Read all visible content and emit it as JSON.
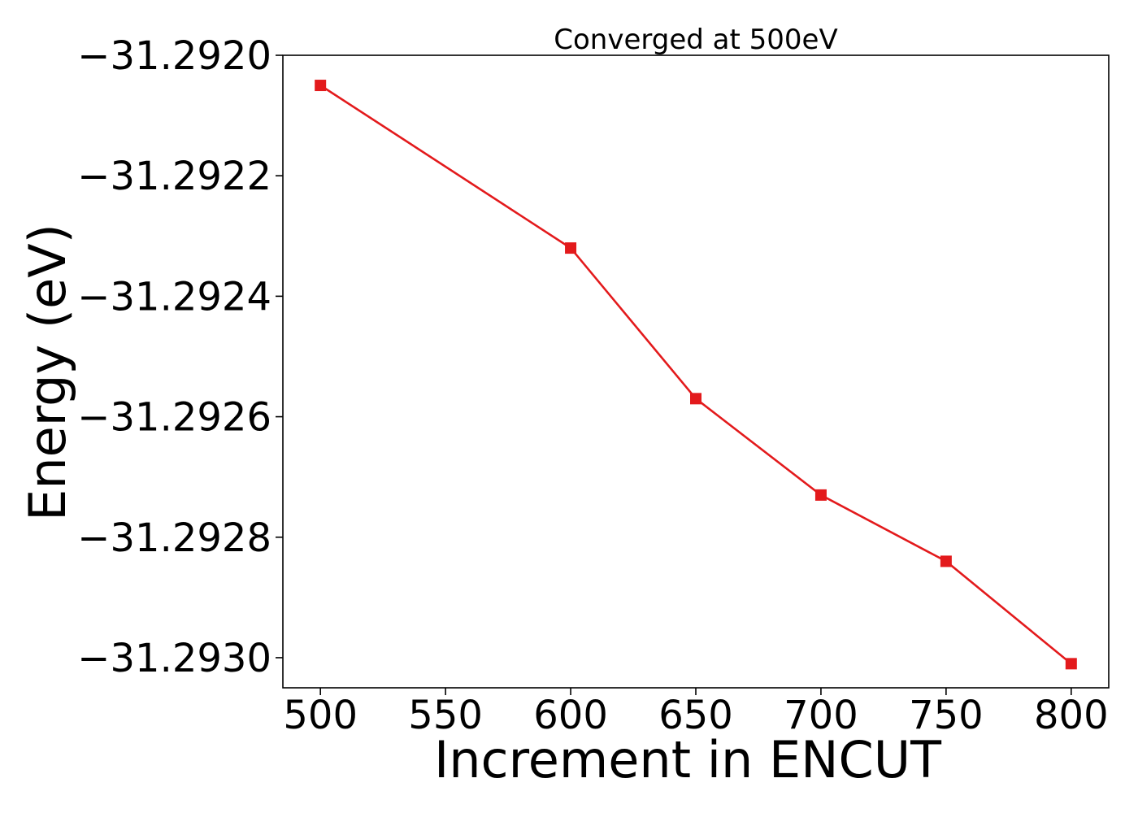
{
  "chart_data": {
    "type": "line",
    "title": "Converged at 500eV",
    "xlabel": "Increment in ENCUT",
    "ylabel": "Energy (eV)",
    "xlim": [
      485,
      815
    ],
    "ylim": [
      -31.29305,
      -31.292
    ],
    "xticks": [
      500,
      550,
      600,
      650,
      700,
      750,
      800
    ],
    "xtick_labels": [
      "500",
      "550",
      "600",
      "650",
      "700",
      "750",
      "800"
    ],
    "yticks": [
      -31.292,
      -31.2922,
      -31.2924,
      -31.2926,
      -31.2928,
      -31.293
    ],
    "ytick_labels": [
      "−31.2920",
      "−31.2922",
      "−31.2924",
      "−31.2926",
      "−31.2928",
      "−31.2930"
    ],
    "grid": false,
    "series": [
      {
        "marker": "square",
        "color": "#e31a1c",
        "x": [
          500,
          600,
          650,
          700,
          750,
          800
        ],
        "y": [
          -31.29205,
          -31.29232,
          -31.29257,
          -31.29273,
          -31.29284,
          -31.29301
        ]
      }
    ]
  }
}
